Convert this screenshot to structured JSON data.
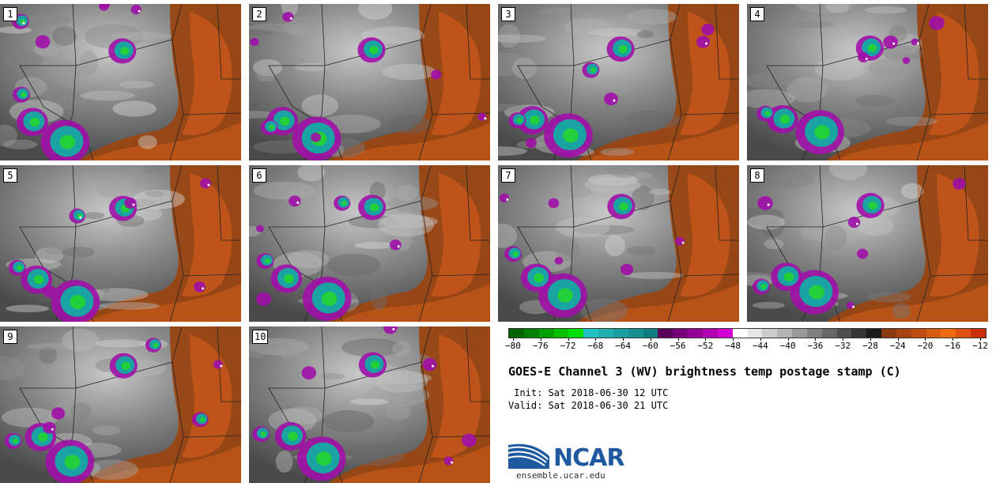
{
  "panels": [
    {
      "label": "1"
    },
    {
      "label": "2"
    },
    {
      "label": "3"
    },
    {
      "label": "4"
    },
    {
      "label": "5"
    },
    {
      "label": "6"
    },
    {
      "label": "7"
    },
    {
      "label": "8"
    },
    {
      "label": "9"
    },
    {
      "label": "10"
    }
  ],
  "legend": {
    "ticks": [
      "−80",
      "−76",
      "−72",
      "−68",
      "−64",
      "−60",
      "−56",
      "−52",
      "−48",
      "−44",
      "−40",
      "−36",
      "−32",
      "−28",
      "−24",
      "−20",
      "−16",
      "−12"
    ],
    "colors": [
      "#006400",
      "#008000",
      "#00a000",
      "#00c000",
      "#00e000",
      "#20c0c0",
      "#20b0b0",
      "#1a9f9f",
      "#148e8e",
      "#0e7d7d",
      "#5a005a",
      "#780078",
      "#960096",
      "#b400b4",
      "#d200d2",
      "#ffffff",
      "#e6e6e6",
      "#cccccc",
      "#b3b3b3",
      "#999999",
      "#808080",
      "#666666",
      "#4d4d4d",
      "#333333",
      "#1a1a1a",
      "#8b3a0f",
      "#a6420f",
      "#c04b10",
      "#d65a10",
      "#ee6a10",
      "#e05010",
      "#cc3008"
    ]
  },
  "title": "GOES-E Channel 3 (WV) brightness temp postage stamp (C)",
  "init_time": " Init: Sat 2018-06-30 12 UTC",
  "valid_time": "Valid: Sat 2018-06-30 21 UTC",
  "logo": {
    "text": "NCAR",
    "url": "ensemble.ucar.edu",
    "brand_color": "#1f5aa0"
  }
}
